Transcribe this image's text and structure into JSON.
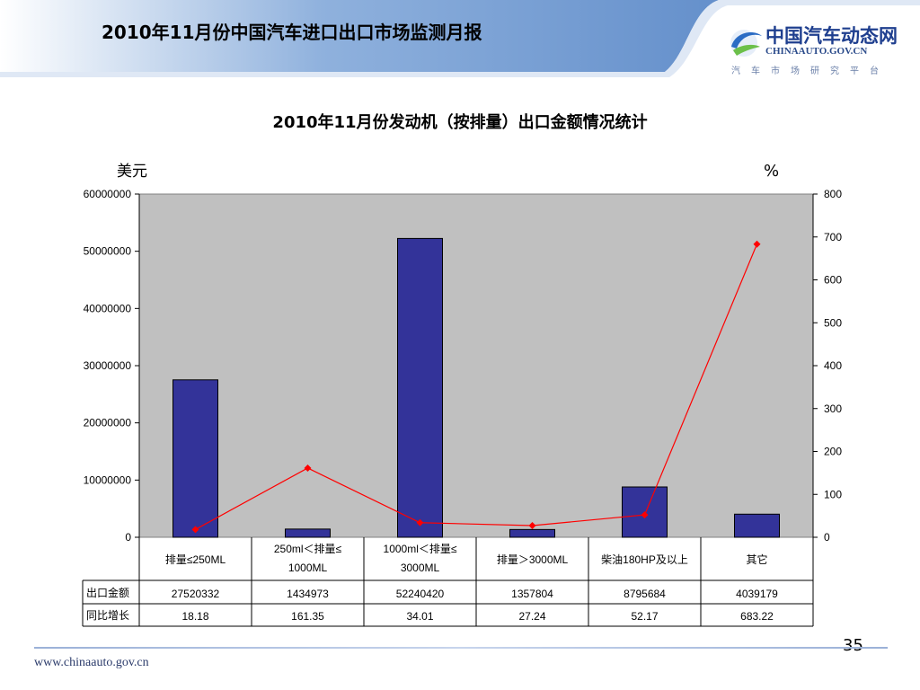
{
  "header": {
    "title": "2010年11月份中国汽车进口出口市场监测月报",
    "logo_text": "中国汽车动态网",
    "logo_url": "CHINAAUTO.GOV.CN",
    "logo_sub": "汽车市场研究平台"
  },
  "footer": {
    "url": "www.chinaauto.gov.cn",
    "page": "35"
  },
  "colors": {
    "bar": "#333399",
    "line": "#ff0000",
    "plot_bg": "#c0c0c0",
    "header_blue": "#5a88c8"
  },
  "chart_data": {
    "type": "bar",
    "title": "2010年11月份发动机（按排量）出口金额情况统计",
    "ylabel": "美元",
    "y2label": "%",
    "categories": [
      "排量≤250ML",
      "250ml＜排量≤1000ML",
      "1000ml＜排量≤3000ML",
      "排量＞3000ML",
      "柴油180HP及以上",
      "其它"
    ],
    "category_lines": [
      [
        "排量≤250ML"
      ],
      [
        "250ml＜排量≤",
        "1000ML"
      ],
      [
        "1000ml＜排量≤",
        "3000ML"
      ],
      [
        "排量＞3000ML"
      ],
      [
        "柴油180HP及以上"
      ],
      [
        "其它"
      ]
    ],
    "ylim": [
      0,
      60000000
    ],
    "y2lim": [
      0,
      800
    ],
    "yticks": [
      "0",
      "10000000",
      "20000000",
      "30000000",
      "40000000",
      "50000000",
      "60000000"
    ],
    "y2ticks": [
      "0",
      "100",
      "200",
      "300",
      "400",
      "500",
      "600",
      "700",
      "800"
    ],
    "grid": false,
    "series": [
      {
        "name": "出口金额",
        "type": "bar",
        "axis": "left",
        "values": [
          27520332,
          1434973,
          52240420,
          1357804,
          8795684,
          4039179
        ],
        "labels": [
          "27520332",
          "1434973",
          "52240420",
          "1357804",
          "8795684",
          "4039179"
        ]
      },
      {
        "name": "同比增长",
        "type": "line",
        "axis": "right",
        "values": [
          18.18,
          161.35,
          34.01,
          27.24,
          52.17,
          683.22
        ],
        "labels": [
          "18.18",
          "161.35",
          "34.01",
          "27.24",
          "52.17",
          "683.22"
        ]
      }
    ]
  }
}
